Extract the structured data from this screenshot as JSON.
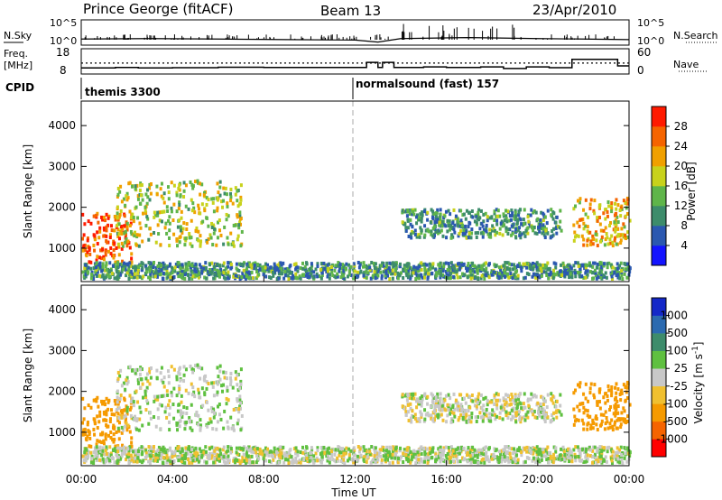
{
  "header": {
    "station": "Prince George (fitACF)",
    "beam": "Beam 13",
    "date": "23/Apr/2010"
  },
  "top_panels": {
    "nsky_label": "N.Sky",
    "nsky_ticks": [
      "10^5",
      "10^0"
    ],
    "nsearch_label": "N.Search",
    "nsearch_ticks": [
      "10^5",
      "10^0"
    ],
    "freq_label": "Freq.",
    "freq_unit": "[MHz]",
    "freq_ticks": [
      "18",
      "8"
    ],
    "nave_label": "Nave",
    "nave_ticks": [
      "60",
      "0"
    ],
    "cpid_label": "CPID",
    "cpid_segments": [
      "themis 3300",
      "normalsound (fast) 157"
    ]
  },
  "power_panel": {
    "ylabel": "Slant Range [km]",
    "yticks": [
      "1000",
      "2000",
      "3000",
      "4000"
    ],
    "colorbar_label": "Power [dB]",
    "colorbar_ticks": [
      "4",
      "8",
      "12",
      "16",
      "20",
      "24",
      "28"
    ],
    "colorbar_colors": [
      "#1414ff",
      "#2b58b0",
      "#3d8c6b",
      "#5fb54a",
      "#c8d21c",
      "#f0a000",
      "#f56400",
      "#ff1a00"
    ]
  },
  "velocity_panel": {
    "ylabel": "Slant Range [km]",
    "yticks": [
      "1000",
      "2000",
      "3000",
      "4000"
    ],
    "colorbar_label": "Velocity  [m s",
    "colorbar_label_sup": "-1",
    "colorbar_label_end": "]",
    "colorbar_ticks": [
      "1000",
      "500",
      "100",
      "25",
      "-25",
      "-100",
      "-500",
      "-1000"
    ],
    "colorbar_colors": [
      "#ff0000",
      "#f56400",
      "#f59a00",
      "#f0c030",
      "#c8c8c8",
      "#5fc040",
      "#3d8c6b",
      "#2b6ab0",
      "#1428c8"
    ]
  },
  "xaxis": {
    "ticks": [
      "00:00",
      "04:00",
      "08:00",
      "12:00",
      "16:00",
      "20:00",
      "00:00"
    ],
    "label": "Time UT"
  },
  "chart_data": {
    "type": "heatmap",
    "title": "Prince George (fitACF)",
    "x_range_hours": [
      0,
      24
    ],
    "y_range_km": [
      180,
      4600
    ],
    "power_scale_db": [
      0,
      30
    ],
    "velocity_scale_ms": [
      -1000,
      1000
    ],
    "frequency_mhz": [
      {
        "t": 0,
        "v": 10.4
      },
      {
        "t": 1.5,
        "v": 10.6
      },
      {
        "t": 2.5,
        "v": 10.4
      },
      {
        "t": 4,
        "v": 10.5
      },
      {
        "t": 6,
        "v": 10.7
      },
      {
        "t": 8,
        "v": 10.6
      },
      {
        "t": 10,
        "v": 10.6
      },
      {
        "t": 12,
        "v": 10.6
      },
      {
        "t": 12.5,
        "v": 12.6
      },
      {
        "t": 13,
        "v": 10.6
      },
      {
        "t": 13.2,
        "v": 12.6
      },
      {
        "t": 13.7,
        "v": 10.6
      },
      {
        "t": 14,
        "v": 10.6
      },
      {
        "t": 15,
        "v": 10.8
      },
      {
        "t": 16,
        "v": 10.6
      },
      {
        "t": 17.5,
        "v": 10.8
      },
      {
        "t": 18.5,
        "v": 10.2
      },
      {
        "t": 19.5,
        "v": 10.8
      },
      {
        "t": 20.5,
        "v": 10.5
      },
      {
        "t": 21.5,
        "v": 13.8
      },
      {
        "t": 23.5,
        "v": 11.2
      },
      {
        "t": 24,
        "v": 11.2
      }
    ],
    "nave": [
      {
        "t": 0,
        "v": 26
      },
      {
        "t": 24,
        "v": 26
      }
    ],
    "n_sky_log10": [
      {
        "t": 0,
        "v": 1.2
      },
      {
        "t": 3,
        "v": 1.3
      },
      {
        "t": 6,
        "v": 1.2
      },
      {
        "t": 9,
        "v": 1.1
      },
      {
        "t": 12,
        "v": 1.0
      },
      {
        "t": 13,
        "v": 0.6
      },
      {
        "t": 14,
        "v": 1.3
      },
      {
        "t": 17,
        "v": 1.5
      },
      {
        "t": 20,
        "v": 1.3
      },
      {
        "t": 22,
        "v": 1.2
      },
      {
        "t": 24,
        "v": 1.1
      }
    ],
    "cpid": [
      {
        "start": 0,
        "end": 12,
        "name": "themis 3300"
      },
      {
        "start": 12,
        "end": 24,
        "name": "normalsound (fast) 157"
      }
    ],
    "echo_regions": [
      {
        "name": "ionospheric-band-early",
        "t_start": 0,
        "t_end": 2.2,
        "range_km": [
          600,
          1800
        ],
        "power_db": 26,
        "velocity_ms": -400
      },
      {
        "name": "arc-morning",
        "t_start": 1.5,
        "t_end": 7,
        "range_km": [
          1000,
          2600
        ],
        "power_db": 16,
        "velocity_ms": 20
      },
      {
        "name": "near-range-ground",
        "t_start": 0,
        "t_end": 24,
        "range_km": [
          200,
          600
        ],
        "power_db": 10,
        "velocity_ms": 10
      },
      {
        "name": "band-afternoon",
        "t_start": 14,
        "t_end": 21,
        "range_km": [
          1200,
          1900
        ],
        "power_db": 10,
        "velocity_ms": 0
      },
      {
        "name": "band-evening",
        "t_start": 21.5,
        "t_end": 24,
        "range_km": [
          1000,
          2200
        ],
        "power_db": 20,
        "velocity_ms": -300
      }
    ]
  }
}
